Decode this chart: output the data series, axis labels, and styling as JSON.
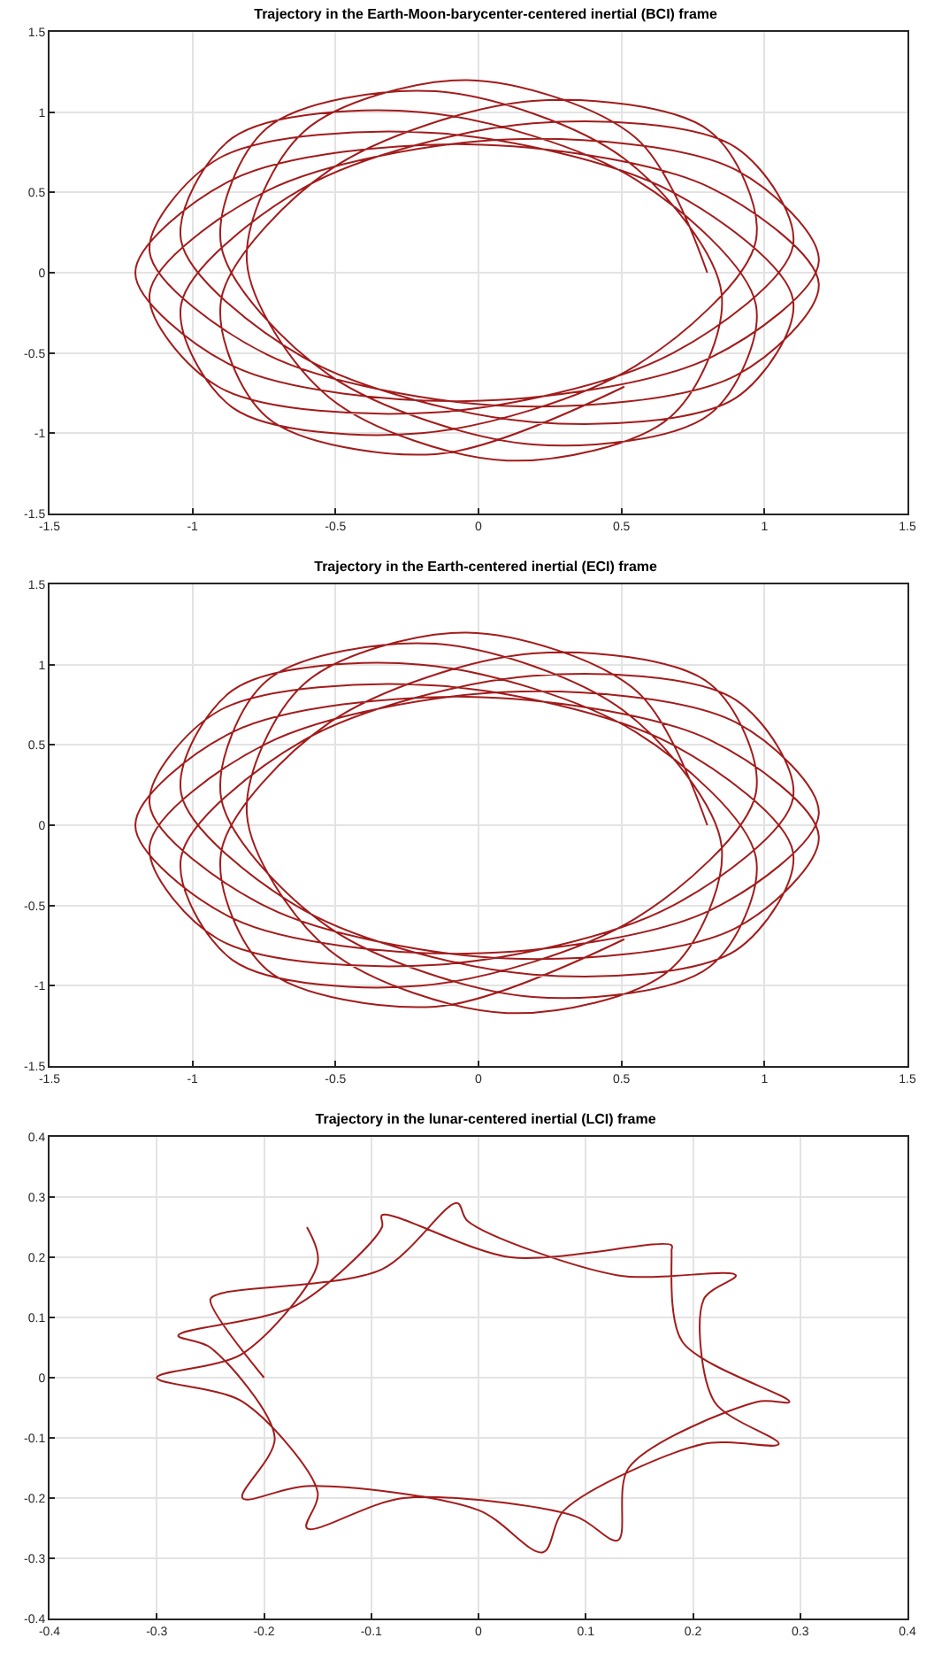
{
  "chart_data": [
    {
      "type": "line",
      "title": "Trajectory in the Earth-Moon-barycenter-centered inertial (BCI) frame",
      "grid": true,
      "xlim": [
        -1.5,
        1.5
      ],
      "ylim": [
        -1.5,
        1.5
      ],
      "xticks": [
        -1.5,
        -1,
        -0.5,
        0,
        0.5,
        1,
        1.5
      ],
      "yticks": [
        -1.5,
        -1,
        -0.5,
        0,
        0.5,
        1,
        1.5
      ],
      "x": [
        0.8,
        0.55,
        -0.04,
        -0.61,
        -0.81,
        -0.52,
        0.1,
        0.67,
        0.85,
        0.51,
        -0.15,
        -0.74,
        -0.9,
        -0.52,
        0.19,
        0.81,
        0.97,
        0.55,
        -0.2,
        -0.86,
        -1.04,
        -0.61,
        0.19,
        0.9,
        1.1,
        0.67,
        -0.15,
        -0.91,
        -1.15,
        -0.74,
        0.1,
        0.9,
        1.19,
        0.81,
        -0.04,
        -0.86,
        -1.2,
        -0.86,
        -0.04,
        0.81,
        1.19,
        0.9,
        0.1,
        -0.74,
        -1.15,
        -0.91,
        -0.15,
        0.67,
        1.1,
        0.9,
        0.19,
        -0.61,
        -1.04,
        -0.86,
        -0.2,
        0.55,
        0.97,
        0.81,
        0.19,
        -0.52,
        -0.9,
        -0.74,
        -0.15,
        0.51
      ],
      "series": [
        {
          "color": "#a21c1c",
          "values": [
            0,
            0.84,
            1.2,
            0.88,
            0.07,
            -0.78,
            -1.17,
            -0.9,
            -0.13,
            0.71,
            1.13,
            0.9,
            0.17,
            -0.64,
            -1.07,
            -0.88,
            -0.2,
            0.58,
            1,
            0.84,
            0.2,
            -0.53,
            -0.93,
            -0.78,
            -0.17,
            0.51,
            0.87,
            0.71,
            0.13,
            -0.51,
            -0.83,
            -0.64,
            -0.07,
            0.53,
            0.8,
            0.58,
            0,
            -0.58,
            -0.8,
            -0.53,
            0.07,
            0.64,
            0.83,
            0.51,
            -0.13,
            -0.71,
            -0.87,
            -0.51,
            0.17,
            0.78,
            0.93,
            0.53,
            -0.2,
            -0.84,
            -1,
            -0.58,
            0.2,
            0.88,
            1.07,
            0.64,
            -0.17,
            -0.9,
            -1.13,
            -0.71
          ]
        }
      ]
    },
    {
      "type": "line",
      "title": "Trajectory in the Earth-centered inertial (ECI) frame",
      "grid": true,
      "xlim": [
        -1.5,
        1.5
      ],
      "ylim": [
        -1.5,
        1.5
      ],
      "xticks": [
        -1.5,
        -1,
        -0.5,
        0,
        0.5,
        1,
        1.5
      ],
      "yticks": [
        -1.5,
        -1,
        -0.5,
        0,
        0.5,
        1,
        1.5
      ],
      "x": [
        0.8,
        0.55,
        -0.04,
        -0.61,
        -0.81,
        -0.52,
        0.1,
        0.67,
        0.85,
        0.51,
        -0.15,
        -0.74,
        -0.9,
        -0.52,
        0.19,
        0.81,
        0.97,
        0.55,
        -0.2,
        -0.86,
        -1.04,
        -0.61,
        0.19,
        0.9,
        1.1,
        0.67,
        -0.15,
        -0.91,
        -1.15,
        -0.74,
        0.1,
        0.9,
        1.19,
        0.81,
        -0.04,
        -0.86,
        -1.2,
        -0.86,
        -0.04,
        0.81,
        1.19,
        0.9,
        0.1,
        -0.74,
        -1.15,
        -0.91,
        -0.15,
        0.67,
        1.1,
        0.9,
        0.19,
        -0.61,
        -1.04,
        -0.86,
        -0.2,
        0.55,
        0.97,
        0.81,
        0.19,
        -0.52,
        -0.9,
        -0.74,
        -0.15,
        0.51
      ],
      "series": [
        {
          "color": "#a21c1c",
          "values": [
            0,
            0.84,
            1.2,
            0.88,
            0.07,
            -0.78,
            -1.17,
            -0.9,
            -0.13,
            0.71,
            1.13,
            0.9,
            0.17,
            -0.64,
            -1.07,
            -0.88,
            -0.2,
            0.58,
            1,
            0.84,
            0.2,
            -0.53,
            -0.93,
            -0.78,
            -0.17,
            0.51,
            0.87,
            0.71,
            0.13,
            -0.51,
            -0.83,
            -0.64,
            -0.07,
            0.53,
            0.8,
            0.58,
            0,
            -0.58,
            -0.8,
            -0.53,
            0.07,
            0.64,
            0.83,
            0.51,
            -0.13,
            -0.71,
            -0.87,
            -0.51,
            0.17,
            0.78,
            0.93,
            0.53,
            -0.2,
            -0.84,
            -1,
            -0.58,
            0.2,
            0.88,
            1.07,
            0.64,
            -0.17,
            -0.9,
            -1.13,
            -0.71
          ]
        }
      ]
    },
    {
      "type": "line",
      "title": "Trajectory in the lunar-centered inertial (LCI) frame",
      "grid": true,
      "xlim": [
        -0.4,
        0.4
      ],
      "ylim": [
        -0.4,
        0.4
      ],
      "xticks": [
        -0.4,
        -0.3,
        -0.2,
        -0.1,
        0,
        0.1,
        0.2,
        0.3,
        0.4
      ],
      "yticks": [
        -0.4,
        -0.3,
        -0.2,
        -0.1,
        0,
        0.1,
        0.2,
        0.3,
        0.4
      ],
      "x": [
        -0.2,
        -0.25,
        -0.24,
        -0.09,
        -0.02,
        -0.01,
        0.13,
        0.24,
        0.21,
        0.22,
        0.28,
        0.21,
        0.08,
        0.06,
        0,
        -0.16,
        -0.22,
        -0.19,
        -0.25,
        -0.28,
        -0.17,
        -0.09,
        -0.09,
        0.03,
        0.18,
        0.18,
        0.19,
        0.29,
        0.26,
        0.14,
        0.13,
        0.09,
        -0.07,
        -0.16,
        -0.15,
        -0.22,
        -0.3,
        -0.22,
        -0.15,
        -0.16
      ],
      "series": [
        {
          "color": "#a21c1c",
          "values": [
            0,
            0.13,
            0.14,
            0.18,
            0.29,
            0.26,
            0.17,
            0.17,
            0.13,
            -0.04,
            -0.11,
            -0.11,
            -0.22,
            -0.29,
            -0.22,
            -0.18,
            -0.2,
            -0.1,
            0.05,
            0.07,
            0.12,
            0.25,
            0.27,
            0.2,
            0.22,
            0.21,
            0.06,
            -0.04,
            -0.04,
            -0.15,
            -0.27,
            -0.23,
            -0.2,
            -0.25,
            -0.19,
            -0.04,
            0,
            0.04,
            0.19,
            0.25
          ]
        }
      ]
    }
  ]
}
